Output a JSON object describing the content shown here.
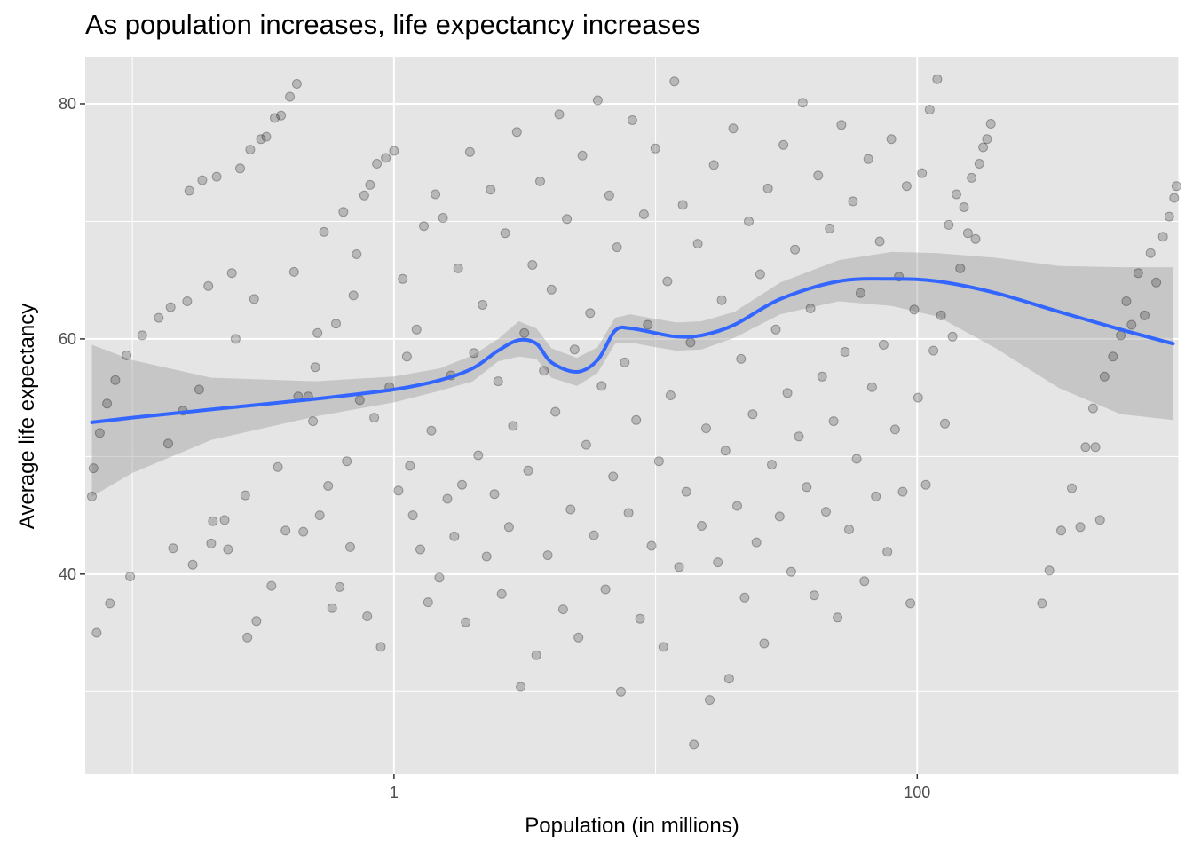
{
  "chart_data": {
    "type": "scatter",
    "title": "As population increases, life expectancy increases",
    "xlabel": "Population (in millions)",
    "ylabel": "Average life expectancy",
    "x_scale": "log10",
    "xlim": [
      0.066,
      1000
    ],
    "ylim": [
      23,
      84
    ],
    "x_ticks": [
      {
        "value": 1,
        "label": "1"
      },
      {
        "value": 100,
        "label": "100"
      }
    ],
    "x_minor_ticks": [
      0.1,
      10,
      1000
    ],
    "y_ticks": [
      {
        "value": 40,
        "label": "40"
      },
      {
        "value": 60,
        "label": "60"
      },
      {
        "value": 80,
        "label": "80"
      }
    ],
    "y_minor_ticks": [
      30,
      50,
      70
    ],
    "grid": true,
    "colors": {
      "panel": "#e5e5e5",
      "grid": "#ffffff",
      "point": "#000000",
      "smooth_line": "#3366ff",
      "ribbon": "#999999"
    },
    "series": [
      {
        "name": "countries",
        "type": "scatter",
        "point_alpha": 0.2,
        "points": [
          [
            0.07,
            46.6
          ],
          [
            0.071,
            49.0
          ],
          [
            0.073,
            35.0
          ],
          [
            0.075,
            52.0
          ],
          [
            0.08,
            54.5
          ],
          [
            0.082,
            37.5
          ],
          [
            0.086,
            56.5
          ],
          [
            0.095,
            58.6
          ],
          [
            0.098,
            39.8
          ],
          [
            0.109,
            60.3
          ],
          [
            0.126,
            61.8
          ],
          [
            0.137,
            51.1
          ],
          [
            0.14,
            62.7
          ],
          [
            0.143,
            42.2
          ],
          [
            0.156,
            53.9
          ],
          [
            0.162,
            63.2
          ],
          [
            0.165,
            72.6
          ],
          [
            0.17,
            40.8
          ],
          [
            0.18,
            55.7
          ],
          [
            0.185,
            73.5
          ],
          [
            0.195,
            64.5
          ],
          [
            0.2,
            42.6
          ],
          [
            0.203,
            44.5
          ],
          [
            0.21,
            73.8
          ],
          [
            0.225,
            44.6
          ],
          [
            0.232,
            42.1
          ],
          [
            0.24,
            65.6
          ],
          [
            0.248,
            60.0
          ],
          [
            0.258,
            74.5
          ],
          [
            0.27,
            46.7
          ],
          [
            0.275,
            34.6
          ],
          [
            0.282,
            76.1
          ],
          [
            0.292,
            63.4
          ],
          [
            0.298,
            36.0
          ],
          [
            0.31,
            77.0
          ],
          [
            0.325,
            77.2
          ],
          [
            0.34,
            39.0
          ],
          [
            0.35,
            78.8
          ],
          [
            0.36,
            49.1
          ],
          [
            0.37,
            79.0
          ],
          [
            0.385,
            43.7
          ],
          [
            0.4,
            80.6
          ],
          [
            0.415,
            65.7
          ],
          [
            0.425,
            81.7
          ],
          [
            0.43,
            55.1
          ],
          [
            0.45,
            43.6
          ],
          [
            0.47,
            55.1
          ],
          [
            0.49,
            53.0
          ],
          [
            0.5,
            57.6
          ],
          [
            0.51,
            60.5
          ],
          [
            0.52,
            45.0
          ],
          [
            0.54,
            69.1
          ],
          [
            0.56,
            47.5
          ],
          [
            0.58,
            37.1
          ],
          [
            0.6,
            61.3
          ],
          [
            0.62,
            38.9
          ],
          [
            0.64,
            70.8
          ],
          [
            0.66,
            49.6
          ],
          [
            0.68,
            42.3
          ],
          [
            0.7,
            63.7
          ],
          [
            0.72,
            67.2
          ],
          [
            0.74,
            54.8
          ],
          [
            0.77,
            72.2
          ],
          [
            0.79,
            36.4
          ],
          [
            0.81,
            73.1
          ],
          [
            0.84,
            53.3
          ],
          [
            0.86,
            74.9
          ],
          [
            0.89,
            33.8
          ],
          [
            0.93,
            75.4
          ],
          [
            0.96,
            55.9
          ],
          [
            1.0,
            76.0
          ],
          [
            1.04,
            47.1
          ],
          [
            1.08,
            65.1
          ],
          [
            1.12,
            58.5
          ],
          [
            1.15,
            49.2
          ],
          [
            1.18,
            45.0
          ],
          [
            1.22,
            60.8
          ],
          [
            1.26,
            42.1
          ],
          [
            1.3,
            69.6
          ],
          [
            1.35,
            37.6
          ],
          [
            1.39,
            52.2
          ],
          [
            1.44,
            72.3
          ],
          [
            1.49,
            39.7
          ],
          [
            1.54,
            70.3
          ],
          [
            1.6,
            46.4
          ],
          [
            1.65,
            56.9
          ],
          [
            1.7,
            43.2
          ],
          [
            1.76,
            66.0
          ],
          [
            1.82,
            47.6
          ],
          [
            1.88,
            35.9
          ],
          [
            1.95,
            75.9
          ],
          [
            2.02,
            58.8
          ],
          [
            2.1,
            50.1
          ],
          [
            2.18,
            62.9
          ],
          [
            2.26,
            41.5
          ],
          [
            2.34,
            72.7
          ],
          [
            2.42,
            46.8
          ],
          [
            2.5,
            56.4
          ],
          [
            2.58,
            38.3
          ],
          [
            2.66,
            69.0
          ],
          [
            2.75,
            44.0
          ],
          [
            2.85,
            52.6
          ],
          [
            2.95,
            77.6
          ],
          [
            3.05,
            30.4
          ],
          [
            3.15,
            60.5
          ],
          [
            3.26,
            48.8
          ],
          [
            3.38,
            66.3
          ],
          [
            3.5,
            33.1
          ],
          [
            3.62,
            73.4
          ],
          [
            3.74,
            57.3
          ],
          [
            3.87,
            41.6
          ],
          [
            4.0,
            64.2
          ],
          [
            4.14,
            53.8
          ],
          [
            4.28,
            79.1
          ],
          [
            4.43,
            37.0
          ],
          [
            4.58,
            70.2
          ],
          [
            4.73,
            45.5
          ],
          [
            4.9,
            59.1
          ],
          [
            5.07,
            34.6
          ],
          [
            5.25,
            75.6
          ],
          [
            5.43,
            51.0
          ],
          [
            5.62,
            62.2
          ],
          [
            5.81,
            43.3
          ],
          [
            6.01,
            80.3
          ],
          [
            6.22,
            56.0
          ],
          [
            6.43,
            38.7
          ],
          [
            6.65,
            72.2
          ],
          [
            6.88,
            48.3
          ],
          [
            7.12,
            67.8
          ],
          [
            7.37,
            30.0
          ],
          [
            7.62,
            58.0
          ],
          [
            7.88,
            45.2
          ],
          [
            8.15,
            78.6
          ],
          [
            8.43,
            53.1
          ],
          [
            8.72,
            36.2
          ],
          [
            9.02,
            70.6
          ],
          [
            9.33,
            61.2
          ],
          [
            9.65,
            42.4
          ],
          [
            9.98,
            76.2
          ],
          [
            10.3,
            49.6
          ],
          [
            10.7,
            33.8
          ],
          [
            11.1,
            64.9
          ],
          [
            11.4,
            55.2
          ],
          [
            11.8,
            81.9
          ],
          [
            12.3,
            40.6
          ],
          [
            12.7,
            71.4
          ],
          [
            13.1,
            47.0
          ],
          [
            13.6,
            59.7
          ],
          [
            14.0,
            25.5
          ],
          [
            14.5,
            68.1
          ],
          [
            15.0,
            44.1
          ],
          [
            15.6,
            52.4
          ],
          [
            16.1,
            29.3
          ],
          [
            16.7,
            74.8
          ],
          [
            17.3,
            41.0
          ],
          [
            17.9,
            63.3
          ],
          [
            18.5,
            50.5
          ],
          [
            19.1,
            31.1
          ],
          [
            19.8,
            77.9
          ],
          [
            20.5,
            45.8
          ],
          [
            21.2,
            58.3
          ],
          [
            21.9,
            38.0
          ],
          [
            22.7,
            70.0
          ],
          [
            23.5,
            53.6
          ],
          [
            24.3,
            42.7
          ],
          [
            25.1,
            65.5
          ],
          [
            26.0,
            34.1
          ],
          [
            26.9,
            72.8
          ],
          [
            27.8,
            49.3
          ],
          [
            28.8,
            60.8
          ],
          [
            29.8,
            44.9
          ],
          [
            30.8,
            76.5
          ],
          [
            31.9,
            55.4
          ],
          [
            33.0,
            40.2
          ],
          [
            34.1,
            67.6
          ],
          [
            35.3,
            51.7
          ],
          [
            36.5,
            80.1
          ],
          [
            37.8,
            47.4
          ],
          [
            39.1,
            62.6
          ],
          [
            40.4,
            38.2
          ],
          [
            41.8,
            73.9
          ],
          [
            43.3,
            56.8
          ],
          [
            44.8,
            45.3
          ],
          [
            46.3,
            69.4
          ],
          [
            47.9,
            53.0
          ],
          [
            49.6,
            36.3
          ],
          [
            51.3,
            78.2
          ],
          [
            53.0,
            58.9
          ],
          [
            54.9,
            43.8
          ],
          [
            56.8,
            71.7
          ],
          [
            58.7,
            49.8
          ],
          [
            60.7,
            63.9
          ],
          [
            62.8,
            39.4
          ],
          [
            65.0,
            75.3
          ],
          [
            67.2,
            55.9
          ],
          [
            69.5,
            46.6
          ],
          [
            71.9,
            68.3
          ],
          [
            74.4,
            59.5
          ],
          [
            76.9,
            41.9
          ],
          [
            79.6,
            77.0
          ],
          [
            82.3,
            52.3
          ],
          [
            85.1,
            65.3
          ],
          [
            88.0,
            47.0
          ],
          [
            91.1,
            73.0
          ],
          [
            94.2,
            37.5
          ],
          [
            97.4,
            62.5
          ],
          [
            100.8,
            55.0
          ],
          [
            104.3,
            74.1
          ],
          [
            107.9,
            47.6
          ],
          [
            111.6,
            79.5
          ],
          [
            115.4,
            59.0
          ],
          [
            119.3,
            82.1
          ],
          [
            123.4,
            62.0
          ],
          [
            127.6,
            52.8
          ],
          [
            132.0,
            69.7
          ],
          [
            136.5,
            60.2
          ],
          [
            141.2,
            72.3
          ],
          [
            146.0,
            66.0
          ],
          [
            151.0,
            71.2
          ],
          [
            156.2,
            69.0
          ],
          [
            161.5,
            73.7
          ],
          [
            167.1,
            68.5
          ],
          [
            172.8,
            74.9
          ],
          [
            178.7,
            76.3
          ],
          [
            184.8,
            77.0
          ],
          [
            191.1,
            78.3
          ],
          [
            300.0,
            37.5
          ],
          [
            320.0,
            40.3
          ],
          [
            355.0,
            43.7
          ],
          [
            390.0,
            47.3
          ],
          [
            420.0,
            44.0
          ],
          [
            440.0,
            50.8
          ],
          [
            470.0,
            54.1
          ],
          [
            480.0,
            50.8
          ],
          [
            500.0,
            44.6
          ],
          [
            520.0,
            56.8
          ],
          [
            560.0,
            58.5
          ],
          [
            600.0,
            60.3
          ],
          [
            630.0,
            63.2
          ],
          [
            660.0,
            61.2
          ],
          [
            700.0,
            65.6
          ],
          [
            740.0,
            62.0
          ],
          [
            780.0,
            67.3
          ],
          [
            820.0,
            64.8
          ],
          [
            870.0,
            68.7
          ],
          [
            920.0,
            70.4
          ],
          [
            960.0,
            72.0
          ],
          [
            980.0,
            73.0
          ]
        ]
      },
      {
        "name": "smooth",
        "type": "line",
        "x": [
          0.07,
          0.1,
          0.2,
          0.5,
          1.0,
          1.5,
          2.0,
          2.5,
          3.0,
          3.5,
          4.0,
          5.0,
          6.0,
          7.0,
          8.0,
          10.0,
          12.0,
          15.0,
          20.0,
          30.0,
          50.0,
          80.0,
          120.0,
          200.0,
          350.0,
          600.0,
          950.0
        ],
        "y": [
          52.9,
          53.3,
          54.0,
          54.9,
          55.7,
          56.5,
          57.5,
          59.0,
          59.9,
          59.6,
          58.0,
          57.2,
          58.2,
          60.7,
          60.9,
          60.5,
          60.2,
          60.3,
          61.2,
          63.4,
          64.9,
          65.1,
          64.9,
          63.9,
          62.3,
          60.8,
          59.6
        ],
        "ci_lower": [
          46.6,
          48.6,
          51.4,
          53.4,
          54.6,
          55.6,
          56.4,
          58.1,
          58.5,
          58.3,
          56.7,
          56.0,
          57.1,
          59.6,
          59.7,
          59.3,
          59.0,
          59.1,
          60.1,
          62.1,
          63.2,
          62.8,
          61.9,
          59.2,
          55.8,
          53.6,
          53.1
        ],
        "ci_upper": [
          59.5,
          58.2,
          56.7,
          56.4,
          56.8,
          57.5,
          58.6,
          60.0,
          61.5,
          60.9,
          59.2,
          58.4,
          59.3,
          61.8,
          62.1,
          61.7,
          61.4,
          61.5,
          62.3,
          64.8,
          66.7,
          67.4,
          67.3,
          66.9,
          66.2,
          66.1,
          66.1
        ]
      }
    ]
  }
}
